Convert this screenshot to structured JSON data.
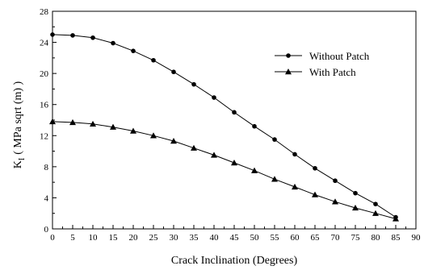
{
  "chart_data": {
    "type": "line",
    "title": "",
    "xlabel": "Crack Inclination  (Degrees)",
    "ylabel": "( MPa sqrt (m) )",
    "ylabel_symbol": "K",
    "ylabel_subscript": "I",
    "xlim": [
      0,
      90
    ],
    "ylim": [
      0,
      28
    ],
    "xticks": [
      0,
      5,
      10,
      15,
      20,
      25,
      30,
      35,
      40,
      45,
      50,
      55,
      60,
      65,
      70,
      75,
      80,
      85,
      90
    ],
    "yticks": [
      0,
      4,
      8,
      12,
      16,
      20,
      24,
      28
    ],
    "grid": false,
    "legend_position": "top-right",
    "x": [
      0,
      5,
      10,
      15,
      20,
      25,
      30,
      35,
      40,
      45,
      50,
      55,
      60,
      65,
      70,
      75,
      80,
      85
    ],
    "series": [
      {
        "name": "Without Patch",
        "marker": "circle",
        "values": [
          25.0,
          24.9,
          24.6,
          23.9,
          22.9,
          21.7,
          20.2,
          18.6,
          16.9,
          15.0,
          13.2,
          11.5,
          9.6,
          7.8,
          6.2,
          4.6,
          3.2,
          1.5
        ]
      },
      {
        "name": "With Patch",
        "marker": "triangle",
        "values": [
          13.8,
          13.7,
          13.5,
          13.1,
          12.6,
          12.0,
          11.3,
          10.4,
          9.5,
          8.5,
          7.5,
          6.4,
          5.4,
          4.4,
          3.5,
          2.7,
          2.0,
          1.3
        ]
      }
    ]
  }
}
